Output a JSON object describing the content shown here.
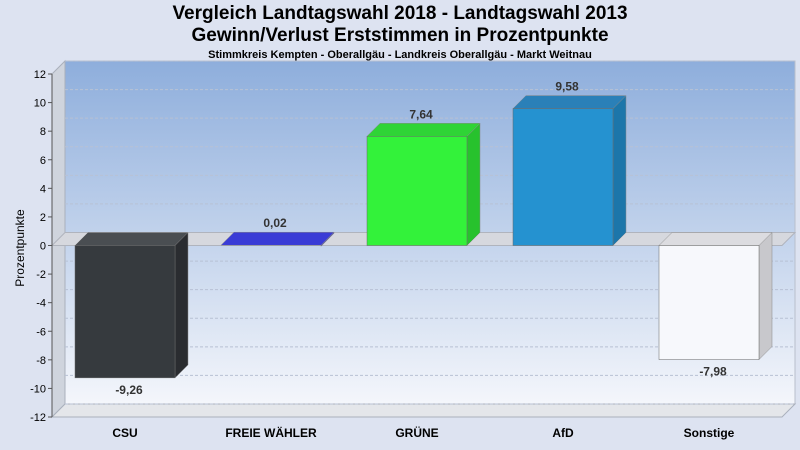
{
  "chart_data": {
    "type": "bar",
    "title": "Vergleich Landtagswahl 2018 - Landtagswahl 2013",
    "title_line2": "Gewinn/Verlust Erststimmen in Prozentpunkte",
    "subtitle": "Stimmkreis Kempten - Oberallgäu - Landkreis Oberallgäu - Markt Weitnau",
    "ylabel": "Prozentpunkte",
    "xlabel": "",
    "ylim": [
      -12,
      12
    ],
    "yticks": [
      12,
      10,
      8,
      6,
      4,
      2,
      0,
      -2,
      -4,
      -6,
      -8,
      -10,
      -12
    ],
    "grid": true,
    "categories": [
      "CSU",
      "FREIE WÄHLER",
      "GRÜNE",
      "AfD",
      "Sonstige"
    ],
    "values": [
      -9.26,
      0.02,
      7.64,
      9.58,
      -7.98
    ],
    "value_labels": [
      "-9,26",
      "0,02",
      "7,64",
      "9,58",
      "-7,98"
    ],
    "colors": [
      "#363a3e",
      "#2d2fbf",
      "#33f23a",
      "#2592d0",
      "#f7f8fc"
    ],
    "side_colors": [
      "#2a2c30",
      "#23259a",
      "#27c22d",
      "#1c76aa",
      "#c8c8cc"
    ],
    "top_colors": [
      "#4a4e52",
      "#3a3cd6",
      "#2fd436",
      "#2a80b8",
      "#dcdce0"
    ]
  }
}
